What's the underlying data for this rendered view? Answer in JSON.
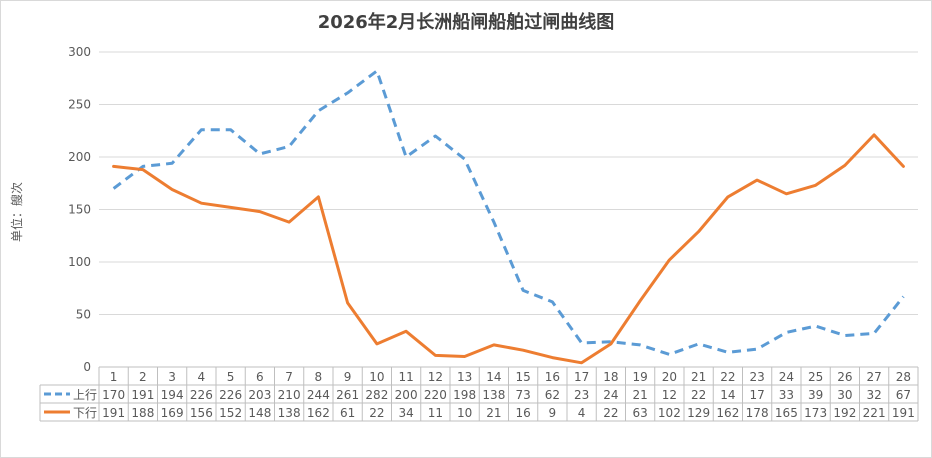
{
  "chart_data": {
    "type": "line",
    "title": "2026年2月长洲船闸船舶过闸曲线图",
    "ylabel": "单位：艘次",
    "xlabel": "",
    "ylim": [
      0,
      300
    ],
    "yticks": [
      0,
      50,
      100,
      150,
      200,
      250,
      300
    ],
    "grid": true,
    "legend": "data-table",
    "categories": [
      "1",
      "2",
      "3",
      "4",
      "5",
      "6",
      "7",
      "8",
      "9",
      "10",
      "11",
      "12",
      "13",
      "14",
      "15",
      "16",
      "17",
      "18",
      "19",
      "20",
      "21",
      "22",
      "23",
      "24",
      "25",
      "26",
      "27",
      "28"
    ],
    "series": [
      {
        "name": "上行",
        "color": "#5b9bd5",
        "style": "dashed",
        "values": [
          170,
          191,
          194,
          226,
          226,
          203,
          210,
          244,
          261,
          282,
          200,
          220,
          198,
          138,
          73,
          62,
          23,
          24,
          21,
          12,
          22,
          14,
          17,
          33,
          39,
          30,
          32,
          67
        ]
      },
      {
        "name": "下行",
        "color": "#ed7d31",
        "style": "solid",
        "values": [
          191,
          188,
          169,
          156,
          152,
          148,
          138,
          162,
          61,
          22,
          34,
          11,
          10,
          21,
          16,
          9,
          4,
          22,
          63,
          102,
          129,
          162,
          178,
          165,
          173,
          192,
          221,
          191
        ]
      }
    ]
  }
}
